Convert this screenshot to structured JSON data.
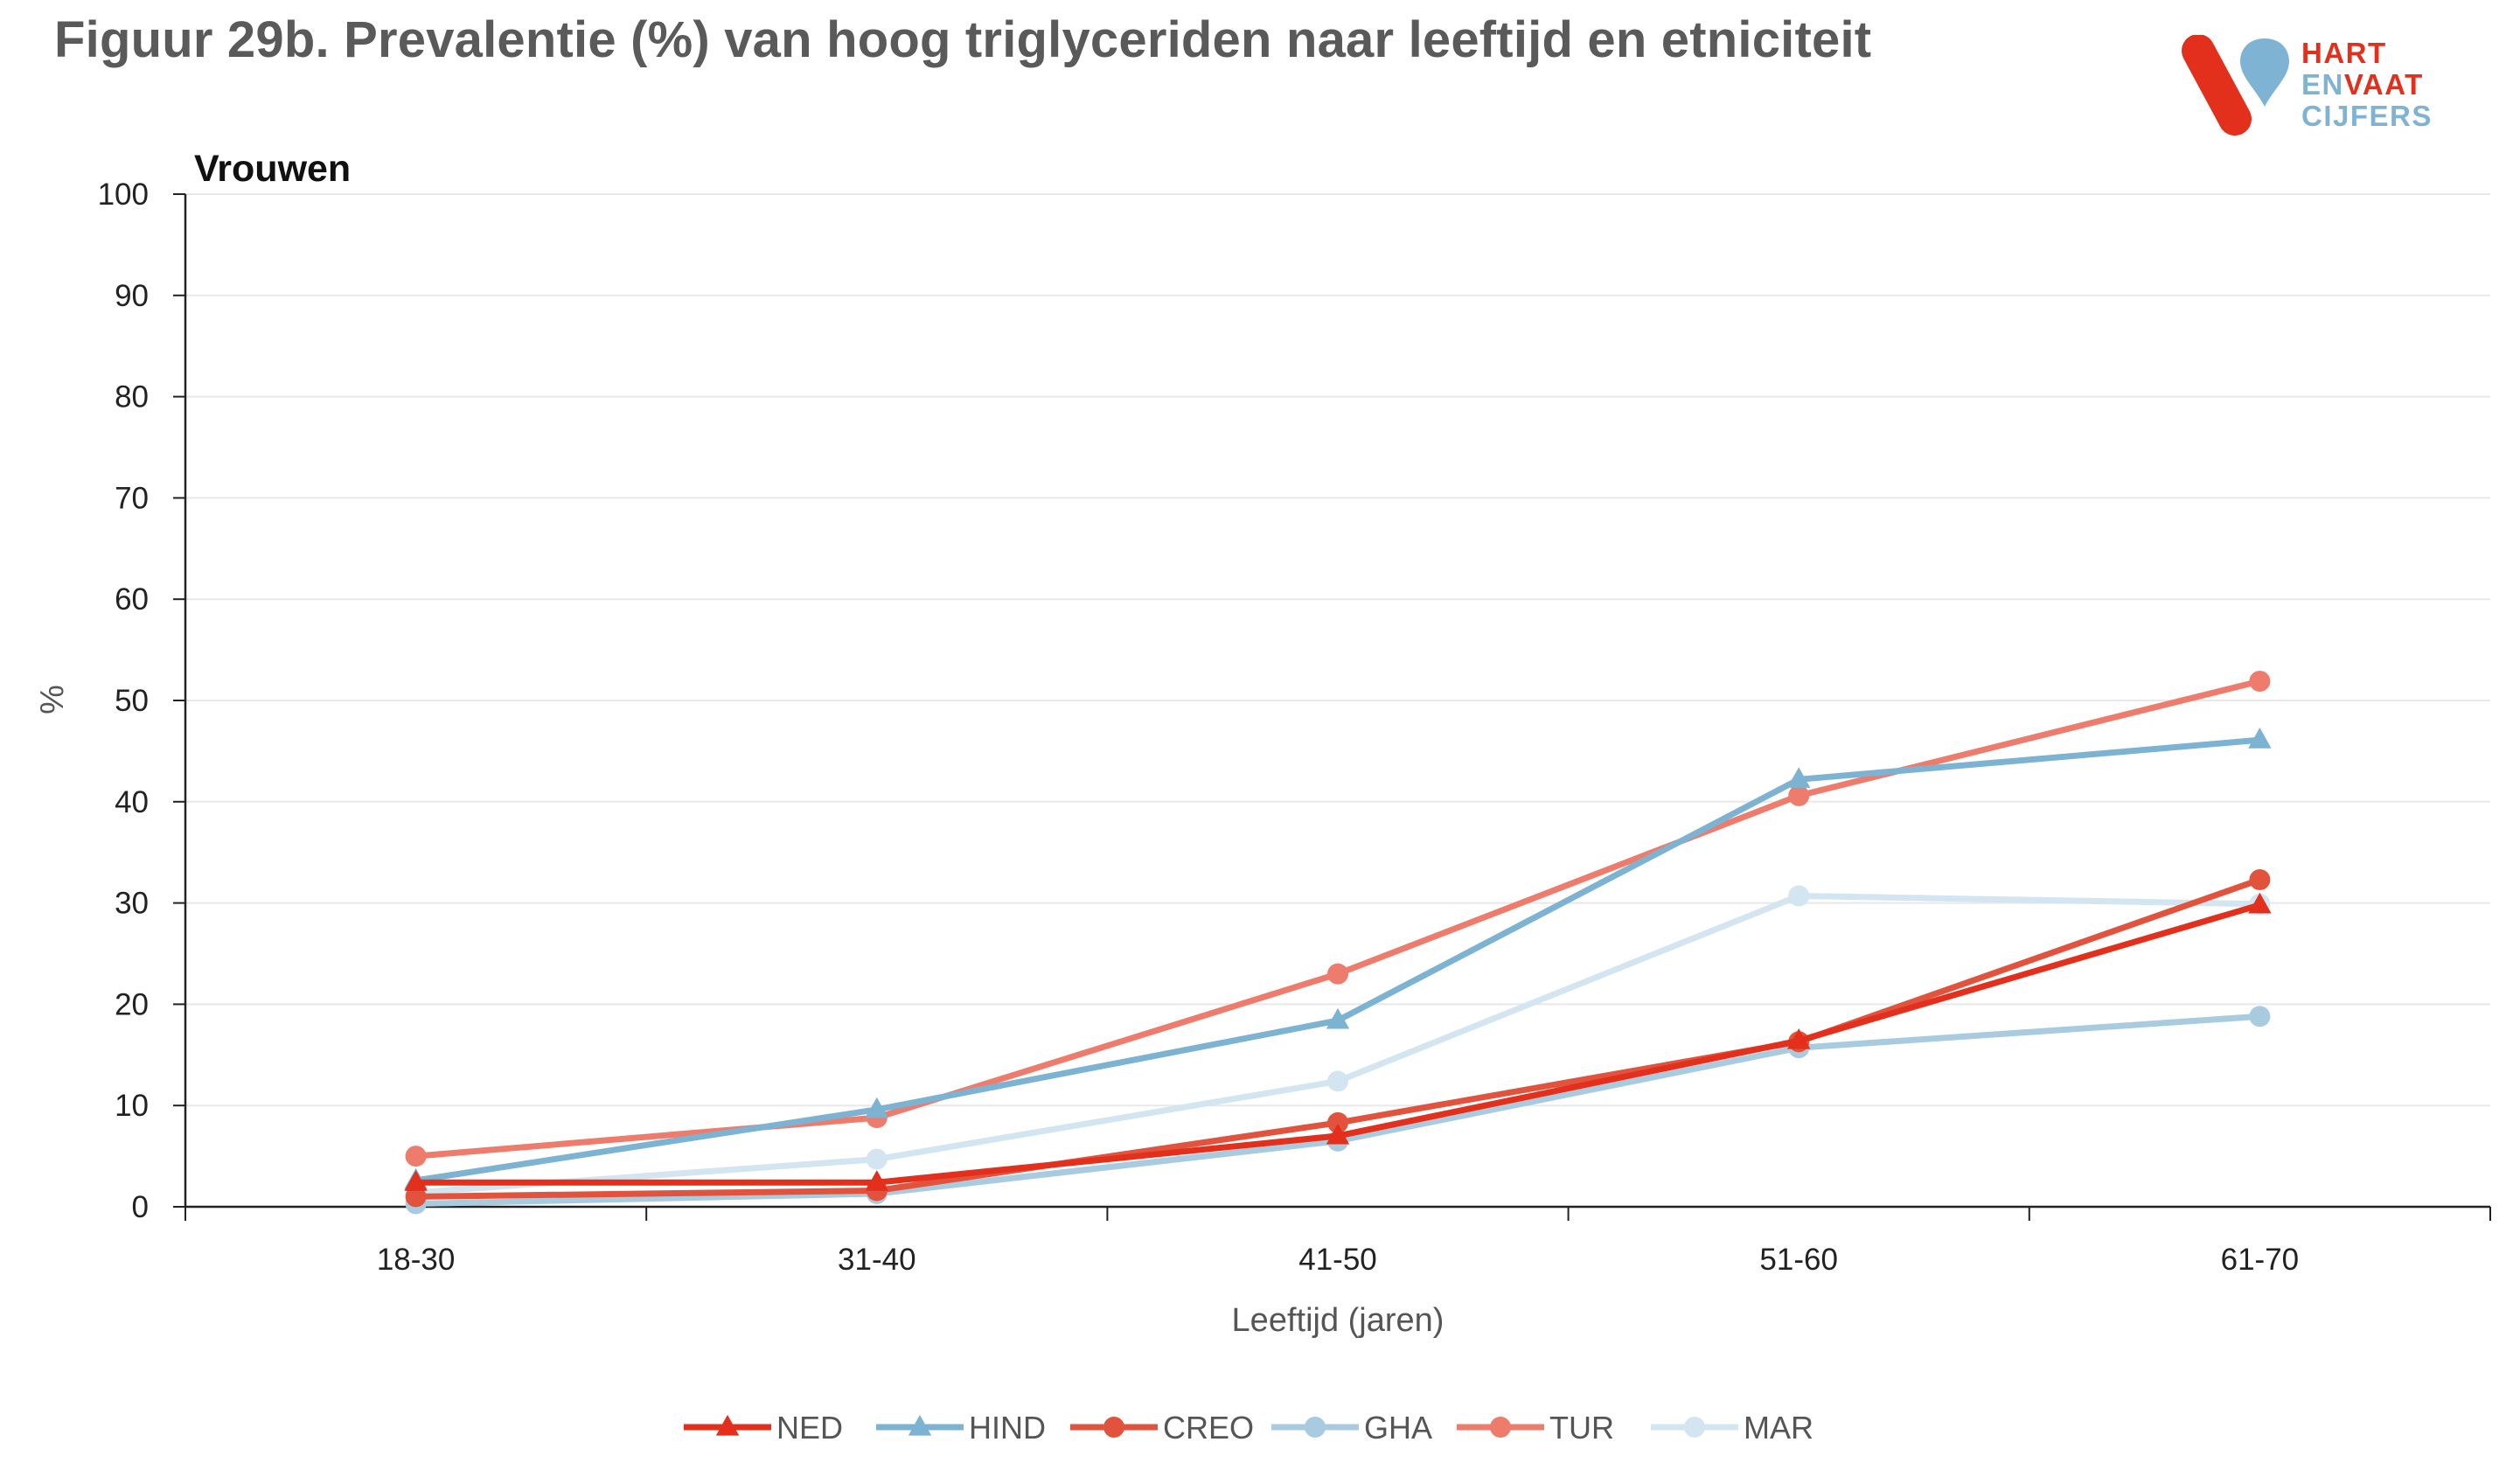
{
  "title": "Figuur 29b. Prevalentie (%) van hoog triglyceriden naar leeftijd en etniciteit",
  "logo": {
    "line1": "HART",
    "line2a": "EN",
    "line2b": "VAAT",
    "line3": "CIJFERS",
    "colors": {
      "red": "#e3301c",
      "blue": "#7fb3d3"
    }
  },
  "chart_data": {
    "type": "line",
    "title": "Vrouwen",
    "xlabel": "Leeftijd (jaren)",
    "ylabel": "%",
    "ylim": [
      0,
      100
    ],
    "yticks": [
      0,
      10,
      20,
      30,
      40,
      50,
      60,
      70,
      80,
      90,
      100
    ],
    "grid": true,
    "legend_position": "bottom",
    "categories": [
      "18-30",
      "31-40",
      "41-50",
      "51-60",
      "61-70"
    ],
    "series": [
      {
        "name": "NED",
        "color": "#e3301c",
        "marker": "triangle",
        "values": [
          2.4,
          2.4,
          7.0,
          16.4,
          29.8
        ]
      },
      {
        "name": "HIND",
        "color": "#7db3d2",
        "marker": "triangle",
        "values": [
          2.6,
          9.6,
          18.4,
          42.2,
          46.1
        ]
      },
      {
        "name": "CREO",
        "color": "#e2533d",
        "marker": "circle",
        "values": [
          1.0,
          1.6,
          8.3,
          16.3,
          32.3
        ]
      },
      {
        "name": "GHA",
        "color": "#a9cbe0",
        "marker": "circle",
        "values": [
          0.3,
          1.3,
          6.5,
          15.7,
          18.8
        ]
      },
      {
        "name": "TUR",
        "color": "#ee7c6c",
        "marker": "circle",
        "values": [
          5.0,
          8.8,
          23.0,
          40.6,
          51.9
        ]
      },
      {
        "name": "MAR",
        "color": "#d3e5f0",
        "marker": "circle",
        "values": [
          1.4,
          4.7,
          12.4,
          30.7,
          29.9
        ]
      }
    ]
  }
}
